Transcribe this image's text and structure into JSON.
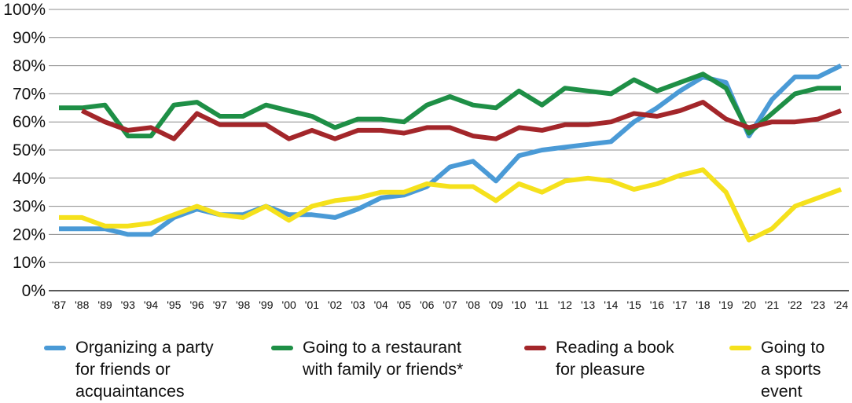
{
  "chart_data": {
    "type": "line",
    "title": "",
    "xlabel": "",
    "ylabel": "",
    "ylim": [
      0,
      100
    ],
    "y_ticks": [
      "0%",
      "10%",
      "20%",
      "30%",
      "40%",
      "50%",
      "60%",
      "70%",
      "80%",
      "90%",
      "100%"
    ],
    "grid": "horizontal",
    "legend_position": "bottom",
    "categories": [
      "'87",
      "'88",
      "'89",
      "'93",
      "'94",
      "'95",
      "'96",
      "'97",
      "'98",
      "'99",
      "'00",
      "'01",
      "'02",
      "'03",
      "'04",
      "'05",
      "'06",
      "'07",
      "'08",
      "'09",
      "'10",
      "'11",
      "'12",
      "'13",
      "'14",
      "'15",
      "'16",
      "'17",
      "'18",
      "'19",
      "'20",
      "'21",
      "'22",
      "'23",
      "'24"
    ],
    "series": [
      {
        "name": "Organizing a party\nfor friends or\nacquaintances",
        "color": "#4a9ad6",
        "values": [
          22,
          22,
          22,
          20,
          20,
          26,
          29,
          27,
          27,
          30,
          27,
          27,
          26,
          29,
          33,
          34,
          37,
          44,
          46,
          39,
          48,
          50,
          51,
          52,
          53,
          60,
          65,
          71,
          76,
          74,
          55,
          68,
          76,
          76,
          80
        ]
      },
      {
        "name": "Going to a restaurant\nwith family or friends*",
        "color": "#1e8f46",
        "values": [
          65,
          65,
          66,
          55,
          55,
          66,
          67,
          62,
          62,
          66,
          64,
          62,
          58,
          61,
          61,
          60,
          66,
          69,
          66,
          65,
          71,
          66,
          72,
          71,
          70,
          75,
          71,
          74,
          77,
          72,
          56,
          63,
          70,
          72,
          72
        ]
      },
      {
        "name": "Reading a book\nfor pleasure",
        "color": "#a3262a",
        "values": [
          null,
          64,
          60,
          57,
          58,
          54,
          63,
          59,
          59,
          59,
          54,
          57,
          54,
          57,
          57,
          56,
          58,
          58,
          55,
          54,
          58,
          57,
          59,
          59,
          60,
          63,
          62,
          64,
          67,
          61,
          58,
          60,
          60,
          61,
          64
        ]
      },
      {
        "name": "Going to\na sports\nevent",
        "color": "#f5e11c",
        "values": [
          26,
          26,
          23,
          23,
          24,
          27,
          30,
          27,
          26,
          30,
          25,
          30,
          32,
          33,
          35,
          35,
          38,
          37,
          37,
          32,
          38,
          35,
          39,
          40,
          39,
          36,
          38,
          41,
          43,
          35,
          18,
          22,
          30,
          33,
          36
        ]
      }
    ]
  }
}
